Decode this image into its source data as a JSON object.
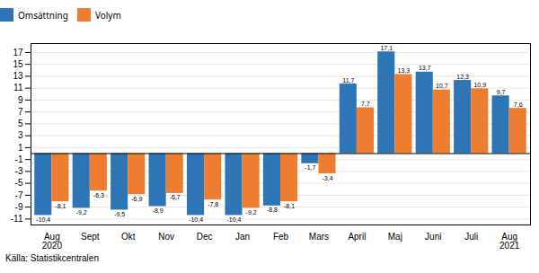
{
  "chart_data": {
    "type": "bar",
    "categories": [
      "Aug\n2020",
      "Sept",
      "Okt",
      "Nov",
      "Dec",
      "Jan",
      "Feb",
      "Mars",
      "April",
      "Maj",
      "Juni",
      "Juli",
      "Aug\n2021"
    ],
    "series": [
      {
        "name": "Omsättning",
        "color": "#2E75B6",
        "values": [
          -10.4,
          -9.2,
          -9.5,
          -8.9,
          -10.4,
          -10.4,
          -8.8,
          -1.7,
          11.7,
          17.1,
          13.7,
          12.3,
          9.7
        ],
        "value_labels": [
          "-10,4",
          "-9,2",
          "-9,5",
          "-8,9",
          "-10,4",
          "-10,4",
          "-8,8",
          "-1,7",
          "11,7",
          "17,1",
          "13,7",
          "12,3",
          "9,7"
        ]
      },
      {
        "name": "Volym",
        "color": "#ED7D31",
        "values": [
          -8.1,
          -6.3,
          -6.9,
          -6.7,
          -7.8,
          -9.2,
          -8.1,
          -3.4,
          7.7,
          13.3,
          10.7,
          10.9,
          7.6
        ],
        "value_labels": [
          "-8,1",
          "-6,3",
          "-6,9",
          "-6,7",
          "-7,8",
          "-9,2",
          "-8,1",
          "-3,4",
          "7,7",
          "13,3",
          "10,7",
          "10,9",
          "7,6"
        ]
      }
    ],
    "ylim": [
      -12,
      18.5
    ],
    "yticks": [
      -11,
      -9,
      -7,
      -5,
      -3,
      -1,
      1,
      3,
      5,
      7,
      9,
      11,
      13,
      15,
      17
    ],
    "grid": true,
    "legend": "upper left",
    "data_labels": true,
    "caption": "Källa: Statistikcentralen"
  }
}
